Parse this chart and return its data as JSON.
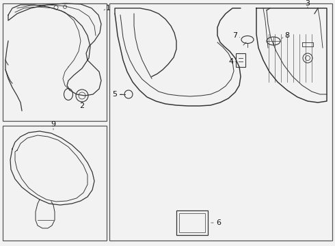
{
  "background_color": "#f2f2f2",
  "border_color": "#555555",
  "line_color": "#333333",
  "label_color": "#111111",
  "lw": 0.9
}
